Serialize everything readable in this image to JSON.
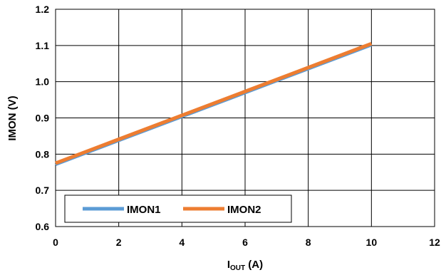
{
  "chart_data": {
    "type": "line",
    "xlabel_main": "I",
    "xlabel_sub": "OUT",
    "xlabel_unit": " (A)",
    "ylabel": "IMON (V)",
    "xlim": [
      0,
      12
    ],
    "ylim": [
      0.6,
      1.2
    ],
    "xticks": [
      "0",
      "2",
      "4",
      "6",
      "8",
      "10",
      "12"
    ],
    "yticks": [
      "0.6",
      "0.7",
      "0.8",
      "0.9",
      "1.0",
      "1.1",
      "1.2"
    ],
    "grid": true,
    "legend_position": "bottom-left",
    "series": [
      {
        "name": "IMON1",
        "color": "#5b9bd5",
        "x": [
          0,
          2,
          4,
          6,
          8,
          10
        ],
        "y": [
          0.77,
          0.836,
          0.902,
          0.968,
          1.034,
          1.1
        ]
      },
      {
        "name": "IMON2",
        "color": "#ed7d31",
        "x": [
          0,
          2,
          4,
          6,
          8,
          10
        ],
        "y": [
          0.775,
          0.841,
          0.907,
          0.973,
          1.039,
          1.105
        ]
      }
    ]
  }
}
